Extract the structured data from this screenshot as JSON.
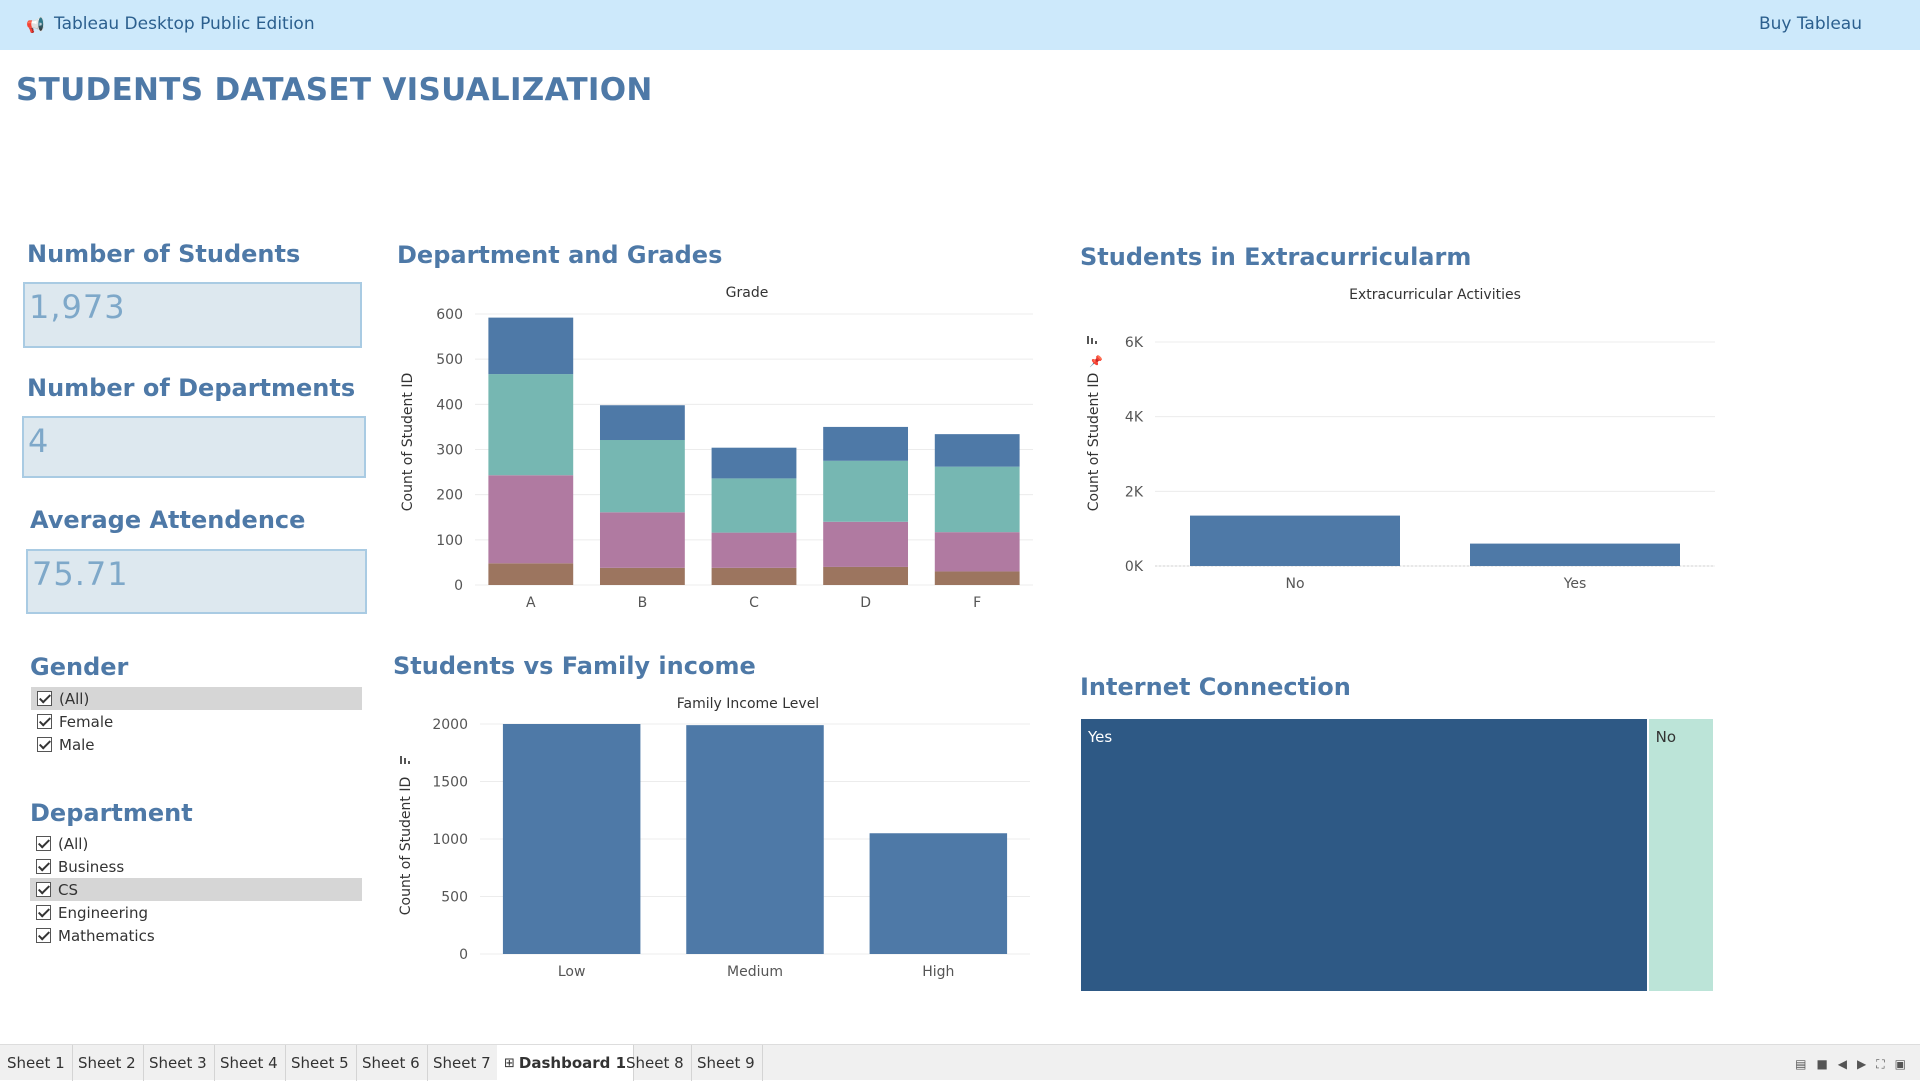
{
  "topbar": {
    "app_title": "Tableau Desktop Public Edition",
    "buy_label": "Buy Tableau",
    "icon": "megaphone-icon"
  },
  "dashboard_title": "STUDENTS DATASET VISUALIZATION",
  "kpis": {
    "students": {
      "title": "Number of Students",
      "value": "1,973"
    },
    "departments": {
      "title": "Number of Departments",
      "value": "4"
    },
    "attendance": {
      "title": "Average Attendence",
      "value": "75.71"
    }
  },
  "filters": {
    "gender": {
      "title": "Gender",
      "items": [
        "(All)",
        "Female",
        "Male"
      ],
      "highlighted": 0
    },
    "department": {
      "title": "Department",
      "items": [
        "(All)",
        "Business",
        "CS",
        "Engineering",
        "Mathematics"
      ],
      "highlighted": 2
    }
  },
  "colors": {
    "blue": "#4e79a7",
    "teal": "#76b7b2",
    "purple": "#b07aa1",
    "brown": "#9c755f",
    "dark_blue": "#2e5985",
    "mint": "#bce4d8",
    "title_blue": "#4e79a7"
  },
  "chart_data": [
    {
      "type": "bar",
      "section_title": "Department and Grades",
      "title": "Grade",
      "ylabel": "Count of Student ID",
      "categories": [
        "A",
        "B",
        "C",
        "D",
        "F"
      ],
      "stacked": true,
      "ylim": [
        0,
        600
      ],
      "yticks": [
        0,
        100,
        200,
        300,
        400,
        500,
        600
      ],
      "series": [
        {
          "values": [
            48,
            38,
            38,
            40,
            30
          ],
          "color": "#9c755f"
        },
        {
          "values": [
            195,
            123,
            78,
            100,
            87
          ],
          "color": "#b07aa1"
        },
        {
          "values": [
            224,
            160,
            120,
            135,
            145
          ],
          "color": "#76b7b2"
        },
        {
          "values": [
            125,
            77,
            68,
            75,
            72
          ],
          "color": "#4e79a7"
        }
      ]
    },
    {
      "type": "bar",
      "section_title": "Students in Extracurricularm",
      "title": "Extracurricular Activities",
      "ylabel": "Count of Student ID",
      "categories": [
        "No",
        "Yes"
      ],
      "values": [
        1350,
        600
      ],
      "ylim": [
        0,
        6000
      ],
      "yticks": [
        0,
        2000,
        4000,
        6000
      ],
      "ytick_labels": [
        "0K",
        "2K",
        "4K",
        "6K"
      ]
    },
    {
      "type": "bar",
      "section_title": "Students vs Family income",
      "title": "Family Income Level",
      "ylabel": "Count of Student ID",
      "categories": [
        "Low",
        "Medium",
        "High"
      ],
      "values": [
        2000,
        1990,
        1050
      ],
      "ylim": [
        0,
        2000
      ],
      "yticks": [
        0,
        500,
        1000,
        1500,
        2000
      ]
    },
    {
      "type": "treemap",
      "section_title": "Internet Connection",
      "categories": [
        "Yes",
        "No"
      ],
      "values": [
        89.5,
        10.5
      ]
    }
  ],
  "tabs": [
    "Sheet 1",
    "Sheet 2",
    "Sheet 3",
    "Sheet 4",
    "Sheet 5",
    "Sheet 6",
    "Sheet 7",
    "Dashboard 1",
    "Sheet 8",
    "Sheet 9"
  ],
  "active_tab": 7
}
